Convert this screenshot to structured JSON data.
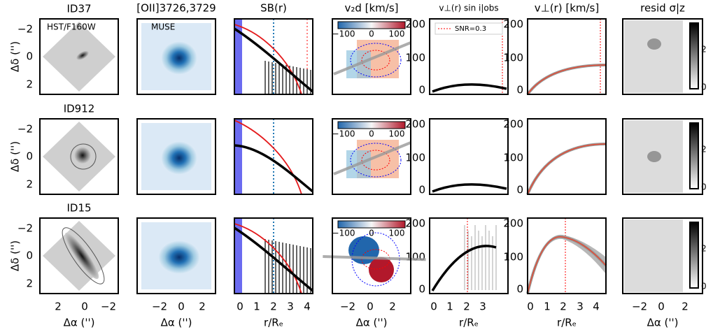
{
  "rows": [
    {
      "label": "ID37",
      "y_label": "Δδ ('')"
    },
    {
      "label": "ID912",
      "y_label": "Δδ ('')"
    },
    {
      "label": "ID15",
      "y_label": "Δδ ('')"
    }
  ],
  "columns": [
    {
      "title": null,
      "x_label": "Δα ('')",
      "x_ticks": [
        "2",
        "0",
        "−2"
      ],
      "y_ticks": [
        "−2",
        "0",
        "2"
      ],
      "note": "HST/F160W"
    },
    {
      "title": "[OII]3726,3729",
      "x_label": "Δα ('')",
      "x_ticks": [
        "−2",
        "0",
        "2"
      ],
      "note": "MUSE"
    },
    {
      "title": "SB(r)",
      "x_label": "r/Rₑ",
      "x_ticks": [
        "0",
        "1",
        "2",
        "3",
        "4"
      ]
    },
    {
      "title": "v₂d [km/s]",
      "x_label": "Δα ('')",
      "x_ticks": [
        "−2",
        "0",
        "2"
      ],
      "colorbar_ticks": [
        "−100",
        "0",
        "100"
      ]
    },
    {
      "title": "v⊥(r) sin i|obs",
      "x_label": "r/Rₑ",
      "x_ticks": [
        "0",
        "1",
        "2",
        "3"
      ],
      "y_ticks": [
        "0",
        "100",
        "200"
      ],
      "legend": "SNR=0.3"
    },
    {
      "title": "v⊥(r) [km/s]",
      "x_label": "r/Rₑ",
      "x_ticks": [
        "0",
        "1",
        "2",
        "3",
        "4"
      ],
      "y_ticks": [
        "0",
        "100",
        "200"
      ]
    },
    {
      "title": "resid σ|z",
      "x_label": "Δα ('')",
      "x_ticks": [
        "−2",
        "0",
        "2"
      ],
      "colorbar_ticks": [
        "2",
        "0"
      ]
    }
  ]
}
